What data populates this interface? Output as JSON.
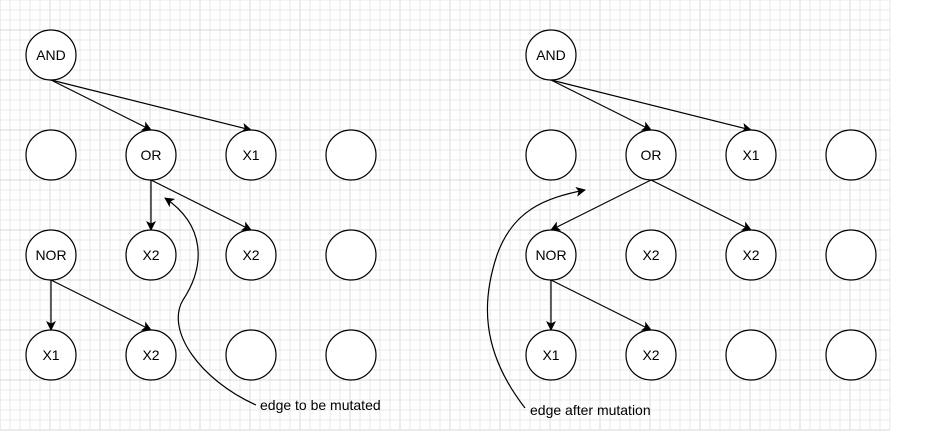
{
  "diagrams": [
    {
      "id": "before",
      "nodes": [
        {
          "id": "L-AND",
          "label": "AND"
        },
        {
          "id": "L-r1c0",
          "label": ""
        },
        {
          "id": "L-OR",
          "label": "OR"
        },
        {
          "id": "L-X1a",
          "label": "X1"
        },
        {
          "id": "L-r1c3",
          "label": ""
        },
        {
          "id": "L-NOR",
          "label": "NOR"
        },
        {
          "id": "L-X2a",
          "label": "X2"
        },
        {
          "id": "L-X2b",
          "label": "X2"
        },
        {
          "id": "L-r2c3",
          "label": ""
        },
        {
          "id": "L-X1b",
          "label": "X1"
        },
        {
          "id": "L-X2c",
          "label": "X2"
        },
        {
          "id": "L-r3c2",
          "label": ""
        },
        {
          "id": "L-r3c3",
          "label": ""
        }
      ],
      "edges": [
        {
          "from": "L-AND",
          "to": "L-OR"
        },
        {
          "from": "L-AND",
          "to": "L-X1a"
        },
        {
          "from": "L-OR",
          "to": "L-X2a"
        },
        {
          "from": "L-OR",
          "to": "L-X2b"
        },
        {
          "from": "L-NOR",
          "to": "L-X1b"
        },
        {
          "from": "L-NOR",
          "to": "L-X2c"
        }
      ],
      "annotation": "edge to be mutated"
    },
    {
      "id": "after",
      "nodes": [
        {
          "id": "R-AND",
          "label": "AND"
        },
        {
          "id": "R-r1c0",
          "label": ""
        },
        {
          "id": "R-OR",
          "label": "OR"
        },
        {
          "id": "R-X1a",
          "label": "X1"
        },
        {
          "id": "R-r1c3",
          "label": ""
        },
        {
          "id": "R-NOR",
          "label": "NOR"
        },
        {
          "id": "R-X2a",
          "label": "X2"
        },
        {
          "id": "R-X2b",
          "label": "X2"
        },
        {
          "id": "R-r2c3",
          "label": ""
        },
        {
          "id": "R-X1b",
          "label": "X1"
        },
        {
          "id": "R-X2c",
          "label": "X2"
        },
        {
          "id": "R-r3c2",
          "label": ""
        },
        {
          "id": "R-r3c3",
          "label": ""
        }
      ],
      "edges": [
        {
          "from": "R-AND",
          "to": "R-OR"
        },
        {
          "from": "R-AND",
          "to": "R-X1a"
        },
        {
          "from": "R-OR",
          "to": "R-NOR"
        },
        {
          "from": "R-OR",
          "to": "R-X2b"
        },
        {
          "from": "R-NOR",
          "to": "R-X1b"
        },
        {
          "from": "R-NOR",
          "to": "R-X2c"
        }
      ],
      "annotation": "edge after mutation"
    }
  ]
}
